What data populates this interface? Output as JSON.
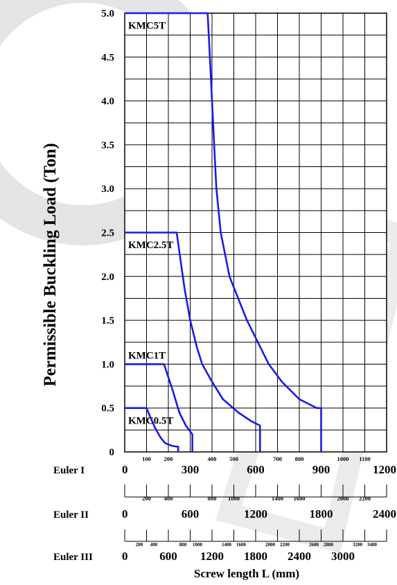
{
  "chart_data": {
    "type": "line",
    "ylabel": "Permissible Buckling Load (Ton)",
    "xlabel": "Screw length L (mm)",
    "ylim": [
      0,
      5.0
    ],
    "y_ticks": [
      "0",
      "0.5",
      "1.0",
      "1.5",
      "2.0",
      "2.5",
      "3.0",
      "3.5",
      "4.0",
      "4.5",
      "5.0"
    ],
    "y_tick_values": [
      0,
      0.5,
      1.0,
      1.5,
      2.0,
      2.5,
      3.0,
      3.5,
      4.0,
      4.5,
      5.0
    ],
    "grid": true,
    "series_color": "#1a1ae6",
    "axis_color": "#000000",
    "x_scales": [
      {
        "label": "Euler I",
        "xlim": [
          0,
          1200
        ],
        "major_ticks": [
          0,
          300,
          600,
          900,
          1200
        ],
        "major_labels": [
          "0",
          "300",
          "600",
          "900",
          "1200"
        ],
        "minor_ticks": [
          100,
          200,
          400,
          500,
          700,
          800,
          1000,
          1100
        ],
        "minor_labels": [
          "100",
          "200",
          "400",
          "500",
          "700",
          "800",
          "1000",
          "1100"
        ]
      },
      {
        "label": "Euler II",
        "xlim": [
          0,
          2400
        ],
        "major_ticks": [
          0,
          600,
          1200,
          1800,
          2400
        ],
        "major_labels": [
          "0",
          "600",
          "1200",
          "1800",
          "2400"
        ],
        "minor_ticks": [
          200,
          400,
          800,
          1000,
          1400,
          1600,
          2000,
          2200
        ],
        "minor_labels": [
          "200",
          "400",
          "800",
          "1000",
          "1400",
          "1600",
          "2000",
          "2200"
        ]
      },
      {
        "label": "Euler III",
        "xlim": [
          0,
          3600
        ],
        "major_ticks": [
          0,
          600,
          1200,
          1800,
          2400,
          3000
        ],
        "major_labels": [
          "0",
          "600",
          "1200",
          "1800",
          "2400",
          "3000"
        ],
        "minor_ticks": [
          200,
          400,
          800,
          1000,
          1400,
          1600,
          2000,
          2200,
          2600,
          2800,
          3200,
          3400
        ],
        "minor_labels": [
          "200",
          "400",
          "800",
          "1000",
          "1400",
          "1600",
          "2000",
          "2200",
          "2600",
          "2800",
          "3200",
          "3400"
        ]
      }
    ],
    "series": [
      {
        "name": "KMC5T",
        "points": [
          [
            0,
            5.0
          ],
          [
            380,
            5.0
          ],
          [
            390,
            4.5
          ],
          [
            400,
            4.0
          ],
          [
            410,
            3.5
          ],
          [
            420,
            3.0
          ],
          [
            440,
            2.5
          ],
          [
            480,
            2.0
          ],
          [
            560,
            1.5
          ],
          [
            660,
            1.0
          ],
          [
            720,
            0.8
          ],
          [
            800,
            0.6
          ],
          [
            880,
            0.5
          ],
          [
            900,
            0.5
          ],
          [
            900,
            0
          ]
        ]
      },
      {
        "name": "KMC2.5T",
        "points": [
          [
            0,
            2.5
          ],
          [
            238,
            2.5
          ],
          [
            255,
            2.2
          ],
          [
            275,
            1.85
          ],
          [
            300,
            1.5
          ],
          [
            330,
            1.2
          ],
          [
            355,
            1.0
          ],
          [
            400,
            0.8
          ],
          [
            450,
            0.6
          ],
          [
            520,
            0.45
          ],
          [
            580,
            0.35
          ],
          [
            620,
            0.3
          ],
          [
            620,
            0
          ]
        ]
      },
      {
        "name": "KMC1T",
        "points": [
          [
            0,
            1.0
          ],
          [
            180,
            1.0
          ],
          [
            200,
            0.85
          ],
          [
            220,
            0.7
          ],
          [
            250,
            0.45
          ],
          [
            280,
            0.3
          ],
          [
            310,
            0.2
          ],
          [
            310,
            0
          ]
        ]
      },
      {
        "name": "KMC0.5T",
        "points": [
          [
            0,
            0.5
          ],
          [
            100,
            0.5
          ],
          [
            120,
            0.38
          ],
          [
            140,
            0.27
          ],
          [
            165,
            0.16
          ],
          [
            185,
            0.1
          ],
          [
            215,
            0.07
          ],
          [
            240,
            0.06
          ],
          [
            245,
            0.06
          ],
          [
            245,
            0
          ]
        ]
      }
    ]
  }
}
